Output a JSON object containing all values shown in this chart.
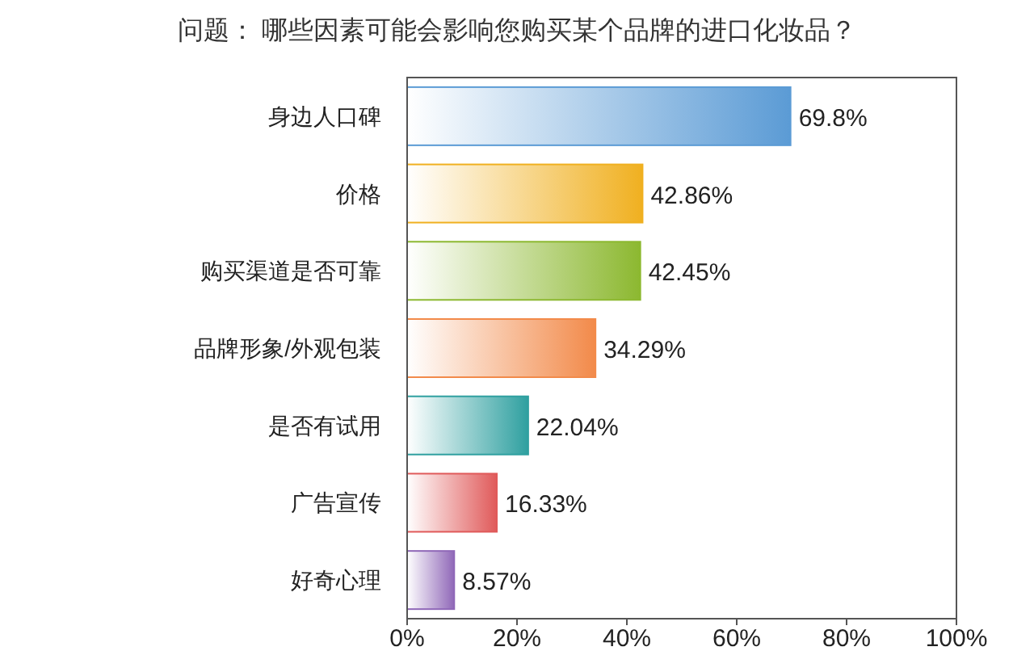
{
  "chart_data": {
    "type": "bar",
    "orientation": "horizontal",
    "title": "问题：  哪些因素可能会影响您购买某个品牌的进口化妆品？",
    "categories": [
      "身边人口碑",
      "价格",
      "购买渠道是否可靠",
      "品牌形象/外观包装",
      "是否有试用",
      "广告宣传",
      "好奇心理"
    ],
    "values": [
      69.8,
      42.86,
      42.45,
      34.29,
      22.04,
      16.33,
      8.57
    ],
    "colors": [
      "#5b9bd5",
      "#f0b020",
      "#8cb830",
      "#f28a4a",
      "#2fa0a0",
      "#e05a5a",
      "#9068b8"
    ],
    "value_labels": [
      "69.8%",
      "42.86%",
      "42.45%",
      "34.29%",
      "22.04%",
      "16.33%",
      "8.57%"
    ],
    "xlim": [
      0,
      100
    ],
    "xticks": [
      {
        "value": 0,
        "label": "0%"
      },
      {
        "value": 20,
        "label": "20%"
      },
      {
        "value": 40,
        "label": "40%"
      },
      {
        "value": 60,
        "label": "60%"
      },
      {
        "value": 80,
        "label": "80%"
      },
      {
        "value": 100,
        "label": "100%"
      }
    ],
    "grid": false
  }
}
